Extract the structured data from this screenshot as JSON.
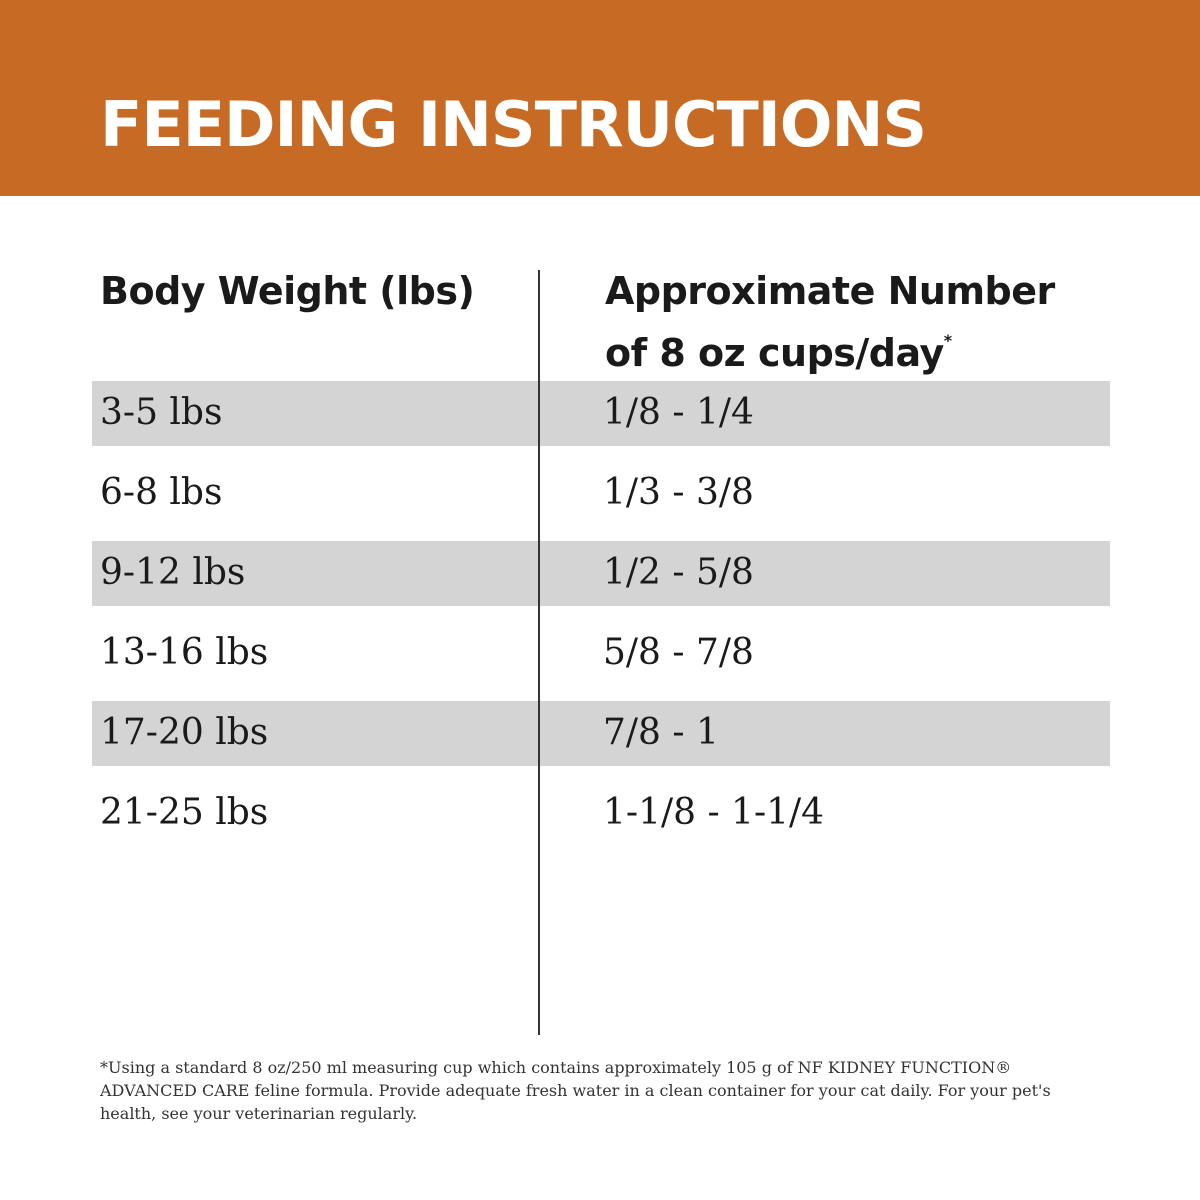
{
  "header": {
    "title": "FEEDING INSTRUCTIONS"
  },
  "table": {
    "columns": [
      {
        "text": "Body Weight (lbs)"
      },
      {
        "text": "Approximate Number of 8 oz cups/day",
        "marker": "*"
      }
    ],
    "rows": [
      [
        "3-5 lbs",
        "1/8 - 1/4"
      ],
      [
        "6-8 lbs",
        "1/3 - 3/8"
      ],
      [
        "9-12 lbs",
        "1/2 - 5/8"
      ],
      [
        "13-16 lbs",
        "5/8 - 7/8"
      ],
      [
        "17-20 lbs",
        "7/8 - 1"
      ],
      [
        "21-25 lbs",
        "1-1/8 - 1-1/4"
      ]
    ]
  },
  "footnote": "*Using a standard 8 oz/250 ml measuring cup which contains approximately 105 g of NF KIDNEY FUNCTION® ADVANCED CARE feline formula. Provide adequate fresh water in a clean container for your cat daily. For your pet's health, see your veterinarian regularly."
}
